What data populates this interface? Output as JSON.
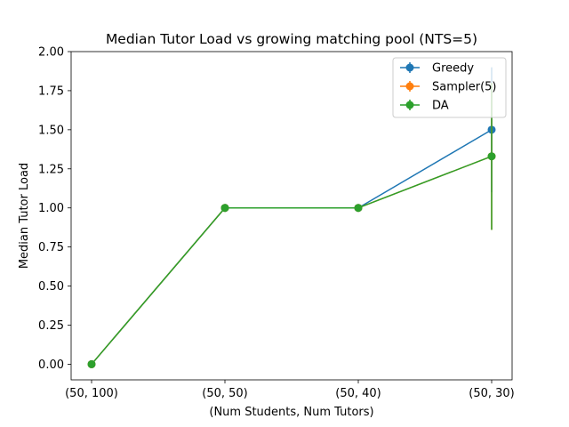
{
  "chart_data": {
    "type": "line",
    "title": "Median Tutor Load vs growing matching pool (NTS=5)",
    "xlabel": "(Num Students, Num Tutors)",
    "ylabel": "Median Tutor Load",
    "categories": [
      "(50, 100)",
      "(50, 50)",
      "(50, 40)",
      "(50, 30)"
    ],
    "ylim": [
      -0.1,
      2.0
    ],
    "yticks": [
      "0.00",
      "0.25",
      "0.50",
      "0.75",
      "1.00",
      "1.25",
      "1.50",
      "1.75",
      "2.00"
    ],
    "ytick_values": [
      0,
      0.25,
      0.5,
      0.75,
      1.0,
      1.25,
      1.5,
      1.75,
      2.0
    ],
    "grid": false,
    "legend_position": "top-right",
    "series": [
      {
        "name": "Greedy",
        "color": "#1f77b4",
        "values": [
          0.0,
          1.0,
          1.0,
          1.5
        ],
        "errors": [
          0,
          0,
          0,
          0.4
        ]
      },
      {
        "name": "Sampler(5)",
        "color": "#ff7f0e",
        "values": [
          0.0,
          1.0,
          1.0,
          1.33
        ],
        "errors": [
          0,
          0,
          0,
          0.47
        ]
      },
      {
        "name": "DA",
        "color": "#2ca02c",
        "values": [
          0.0,
          1.0,
          1.0,
          1.33
        ],
        "errors": [
          0,
          0,
          0,
          0.47
        ]
      }
    ]
  }
}
